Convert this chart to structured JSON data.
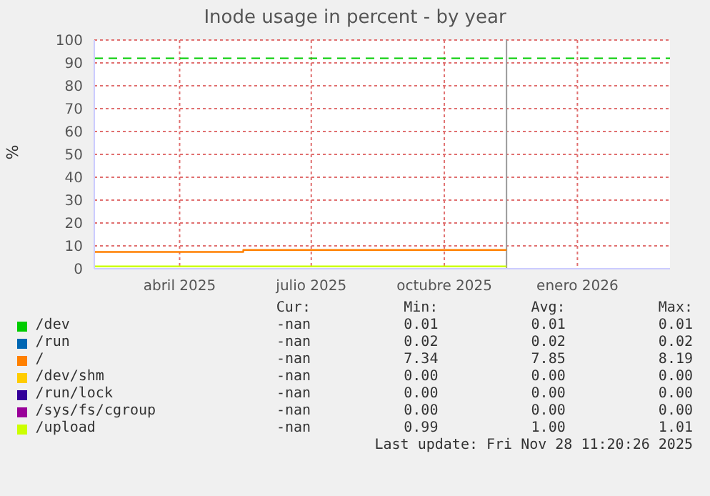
{
  "chart_data": {
    "type": "step",
    "title": "Inode usage in percent - by year",
    "ylabel": "%",
    "x": [
      "2025-02-16",
      "2025-05-30",
      "2025-11-28"
    ],
    "xlim": [
      "2025-02-16",
      "2026-03-21"
    ],
    "xticks": [
      {
        "value": "2025-04-16",
        "label": "abril 2025"
      },
      {
        "value": "2025-07-16",
        "label": "julio 2025"
      },
      {
        "value": "2025-10-16",
        "label": "octubre 2025"
      },
      {
        "value": "2026-01-16",
        "label": "enero 2026"
      }
    ],
    "ylim": [
      0,
      100
    ],
    "yticks": [
      0,
      10,
      20,
      30,
      40,
      50,
      60,
      70,
      80,
      90,
      100
    ],
    "grid": true,
    "legend": "bottom",
    "line_style": "solid",
    "marker": "none",
    "series": [
      {
        "name": "/dev",
        "color": "#00cc00",
        "values": [
          null,
          null,
          null
        ]
      },
      {
        "name": "/run",
        "color": "#0066b3",
        "values": [
          null,
          null,
          null
        ]
      },
      {
        "name": "/",
        "color": "#ff8000",
        "values": [
          7.34,
          8.19,
          8.19
        ]
      },
      {
        "name": "/dev/shm",
        "color": "#ffcc00",
        "values": [
          null,
          null,
          null
        ]
      },
      {
        "name": "/run/lock",
        "color": "#330099",
        "values": [
          null,
          null,
          null
        ]
      },
      {
        "name": "/sys/fs/cgroup",
        "color": "#990099",
        "values": [
          null,
          null,
          null
        ]
      },
      {
        "name": "/upload",
        "color": "#ccff00",
        "values": [
          1.0,
          1.0,
          1.0
        ]
      }
    ],
    "ref_lines": [
      {
        "axis": "y",
        "value": 92,
        "color": "#00cc00",
        "line_style": "dashed"
      },
      {
        "axis": "x",
        "value": "2025-11-28",
        "color": "#999999",
        "line_style": "solid"
      }
    ],
    "annotations": [
      "Cur:",
      "Min:",
      "Avg:",
      "Max:",
      "-nan",
      "0.01",
      "0.01",
      "0.01",
      "-nan",
      "0.02",
      "0.02",
      "0.02",
      "-nan",
      "7.34",
      "7.85",
      "8.19",
      "-nan",
      "0.00",
      "0.00",
      "0.00",
      "-nan",
      "0.00",
      "0.00",
      "0.00",
      "-nan",
      "0.00",
      "0.00",
      "0.00",
      "-nan",
      "0.99",
      "1.00",
      "1.01",
      "Last update: Fri Nov 28 11:20:26 2025"
    ]
  }
}
